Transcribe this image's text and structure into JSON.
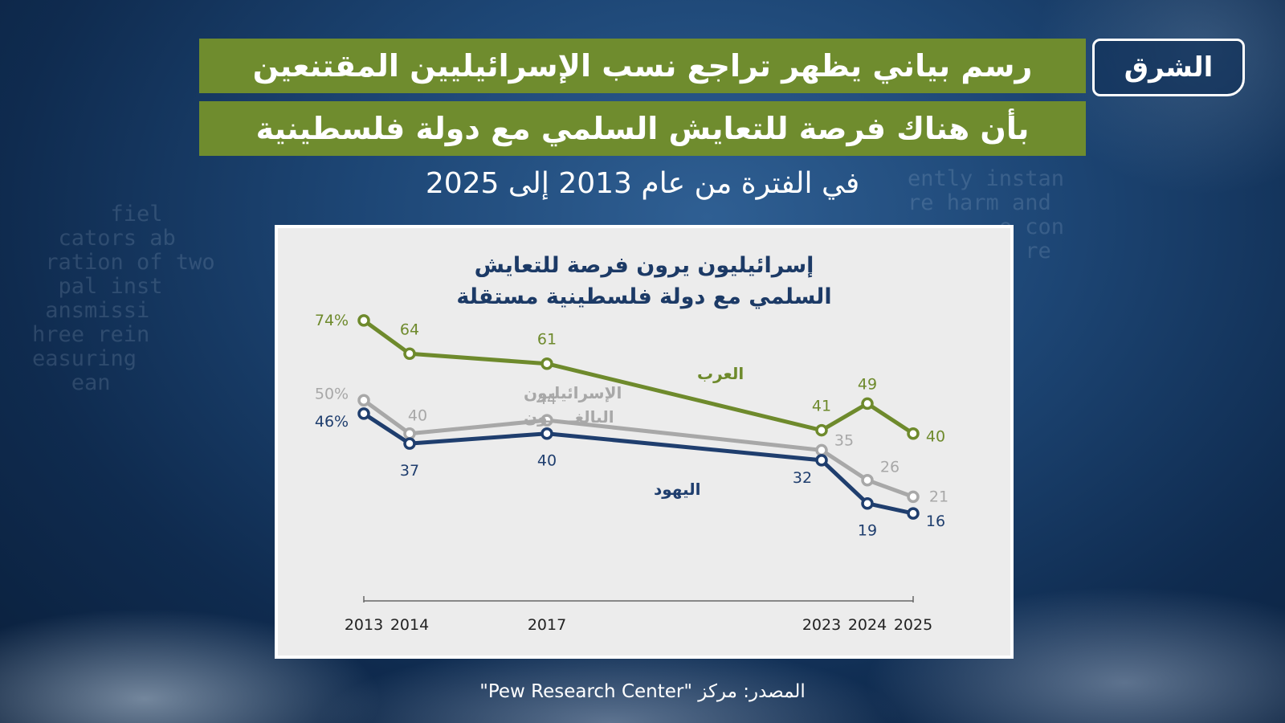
{
  "brand": {
    "logo_text": "الشرق"
  },
  "header": {
    "title_line1": "رسم بياني يظهر تراجع نسب الإسرائيليين المقتنعين",
    "title_line2": "بأن هناك فرصة للتعايش السلمي مع دولة فلسطينية",
    "subtitle": "في الفترة من عام 2013 إلى 2025"
  },
  "footer": {
    "source": "المصدر: مركز \"Pew Research Center\""
  },
  "colors": {
    "arabs": "#6e8a2c",
    "adults": "#a8a8a8",
    "jews": "#1f3e6e",
    "title_band": "#6f8c2e",
    "chart_title": "#1c3a66"
  },
  "chart_data": {
    "type": "line",
    "title_line1": "إسرائيليون يرون فرصة للتعايش",
    "title_line2": "السلمي مع دولة فلسطينية مستقلة",
    "x": [
      2013,
      2014,
      2017,
      2023,
      2024,
      2025
    ],
    "x_labels": [
      "2013",
      "2014",
      "2017",
      "2023",
      "2024",
      "2025"
    ],
    "ylim": [
      10,
      80
    ],
    "grid": false,
    "series": [
      {
        "key": "arabs",
        "name": "العرب",
        "values": [
          74,
          64,
          61,
          41,
          49,
          40
        ],
        "labels": [
          "74%",
          "64",
          "61",
          "41",
          "49",
          "40"
        ]
      },
      {
        "key": "adults",
        "name_line1": "الإسرائيليون",
        "name_line2": "البالغـــــون",
        "values": [
          50,
          40,
          44,
          35,
          26,
          21
        ],
        "labels": [
          "50%",
          "40",
          "44",
          "35",
          "26",
          "21"
        ]
      },
      {
        "key": "jews",
        "name": "اليهود",
        "values": [
          46,
          37,
          40,
          32,
          19,
          16
        ],
        "labels": [
          "46%",
          "37",
          "40",
          "32",
          "19",
          "16"
        ]
      }
    ]
  }
}
